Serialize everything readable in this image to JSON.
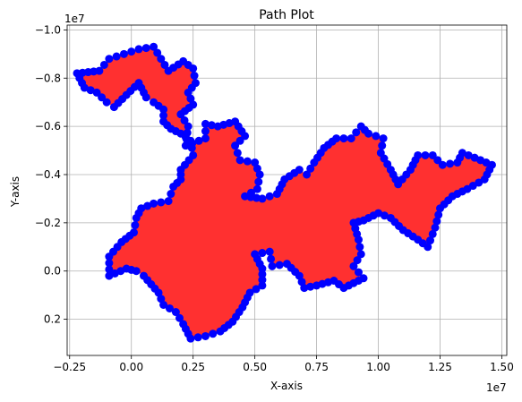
{
  "chart_data": {
    "type": "scatter",
    "title": "Path Plot",
    "xlabel": "X-axis",
    "ylabel": "Y-axis",
    "x_offset_label": "1e7",
    "y_offset_label": "1e7",
    "xlim": [
      -2.6,
      15.2
    ],
    "ylim": [
      0.35,
      -1.02
    ],
    "y_inverted": true,
    "grid": true,
    "x_ticks": [
      -0.25,
      0.0,
      0.25,
      0.5,
      0.75,
      1.0,
      1.25,
      1.5
    ],
    "x_tick_labels": [
      "−0.25",
      "0.00",
      "0.25",
      "0.50",
      "0.75",
      "1.00",
      "1.25",
      "1.50"
    ],
    "y_ticks": [
      -1.0,
      -0.8,
      -0.6,
      -0.4,
      -0.2,
      0.0,
      0.2
    ],
    "y_tick_labels": [
      "−1.0",
      "−0.8",
      "−0.6",
      "−0.4",
      "−0.2",
      "0.0",
      "0.2"
    ],
    "fill_color": "#ff3030",
    "marker_color": "#0000ff",
    "path": [
      [
        -2.2,
        -0.82
      ],
      [
        -1.3,
        -0.83
      ],
      [
        -0.9,
        -0.88
      ],
      [
        -0.3,
        -0.9
      ],
      [
        0.3,
        -0.92
      ],
      [
        0.9,
        -0.93
      ],
      [
        1.2,
        -0.88
      ],
      [
        1.5,
        -0.83
      ],
      [
        2.1,
        -0.87
      ],
      [
        2.5,
        -0.84
      ],
      [
        2.6,
        -0.78
      ],
      [
        2.3,
        -0.74
      ],
      [
        2.5,
        -0.69
      ],
      [
        2.0,
        -0.65
      ],
      [
        2.3,
        -0.6
      ],
      [
        2.2,
        -0.52
      ],
      [
        3.0,
        -0.55
      ],
      [
        3.0,
        -0.61
      ],
      [
        3.5,
        -0.6
      ],
      [
        4.2,
        -0.62
      ],
      [
        4.6,
        -0.56
      ],
      [
        4.2,
        -0.52
      ],
      [
        4.4,
        -0.46
      ],
      [
        5.0,
        -0.45
      ],
      [
        5.2,
        -0.4
      ],
      [
        5.1,
        -0.34
      ],
      [
        4.6,
        -0.31
      ],
      [
        5.3,
        -0.3
      ],
      [
        5.9,
        -0.32
      ],
      [
        6.2,
        -0.38
      ],
      [
        6.8,
        -0.42
      ],
      [
        7.1,
        -0.4
      ],
      [
        7.4,
        -0.45
      ],
      [
        7.8,
        -0.51
      ],
      [
        8.3,
        -0.55
      ],
      [
        8.9,
        -0.55
      ],
      [
        9.3,
        -0.6
      ],
      [
        9.6,
        -0.57
      ],
      [
        10.2,
        -0.55
      ],
      [
        10.1,
        -0.49
      ],
      [
        10.5,
        -0.42
      ],
      [
        10.8,
        -0.36
      ],
      [
        11.3,
        -0.42
      ],
      [
        11.6,
        -0.48
      ],
      [
        12.2,
        -0.48
      ],
      [
        12.6,
        -0.44
      ],
      [
        13.2,
        -0.45
      ],
      [
        13.4,
        -0.49
      ],
      [
        13.9,
        -0.47
      ],
      [
        14.6,
        -0.44
      ],
      [
        14.3,
        -0.38
      ],
      [
        13.6,
        -0.34
      ],
      [
        13.0,
        -0.31
      ],
      [
        12.5,
        -0.26
      ],
      [
        12.3,
        -0.18
      ],
      [
        12.0,
        -0.1
      ],
      [
        11.6,
        -0.13
      ],
      [
        11.0,
        -0.17
      ],
      [
        10.5,
        -0.22
      ],
      [
        10.0,
        -0.24
      ],
      [
        9.4,
        -0.21
      ],
      [
        9.0,
        -0.2
      ],
      [
        9.2,
        -0.13
      ],
      [
        9.3,
        -0.07
      ],
      [
        9.0,
        -0.02
      ],
      [
        9.4,
        0.03
      ],
      [
        8.6,
        0.07
      ],
      [
        8.2,
        0.04
      ],
      [
        7.5,
        0.06
      ],
      [
        7.0,
        0.07
      ],
      [
        6.8,
        0.02
      ],
      [
        6.3,
        -0.03
      ],
      [
        5.7,
        -0.02
      ],
      [
        5.6,
        -0.08
      ],
      [
        5.0,
        -0.07
      ],
      [
        5.3,
        -0.01
      ],
      [
        5.3,
        0.06
      ],
      [
        4.8,
        0.09
      ],
      [
        4.5,
        0.15
      ],
      [
        4.1,
        0.21
      ],
      [
        3.6,
        0.25
      ],
      [
        3.0,
        0.27
      ],
      [
        2.4,
        0.28
      ],
      [
        2.1,
        0.22
      ],
      [
        1.8,
        0.17
      ],
      [
        1.3,
        0.14
      ],
      [
        1.1,
        0.09
      ],
      [
        0.5,
        0.02
      ],
      [
        0.2,
        0.0
      ],
      [
        -0.2,
        -0.01
      ],
      [
        -0.9,
        0.02
      ],
      [
        -0.9,
        -0.06
      ],
      [
        -0.4,
        -0.12
      ],
      [
        0.1,
        -0.16
      ],
      [
        0.2,
        -0.22
      ],
      [
        0.4,
        -0.26
      ],
      [
        0.9,
        -0.28
      ],
      [
        1.5,
        -0.29
      ],
      [
        1.7,
        -0.35
      ],
      [
        2.0,
        -0.38
      ],
      [
        2.0,
        -0.42
      ],
      [
        2.5,
        -0.48
      ],
      [
        2.4,
        -0.54
      ],
      [
        2.0,
        -0.57
      ],
      [
        1.6,
        -0.59
      ],
      [
        1.3,
        -0.62
      ],
      [
        1.3,
        -0.67
      ],
      [
        0.9,
        -0.7
      ],
      [
        0.6,
        -0.72
      ],
      [
        0.3,
        -0.78
      ],
      [
        -0.2,
        -0.73
      ],
      [
        -0.7,
        -0.68
      ],
      [
        -1.0,
        -0.7
      ],
      [
        -1.4,
        -0.74
      ],
      [
        -1.9,
        -0.76
      ],
      [
        -2.2,
        -0.82
      ]
    ]
  }
}
